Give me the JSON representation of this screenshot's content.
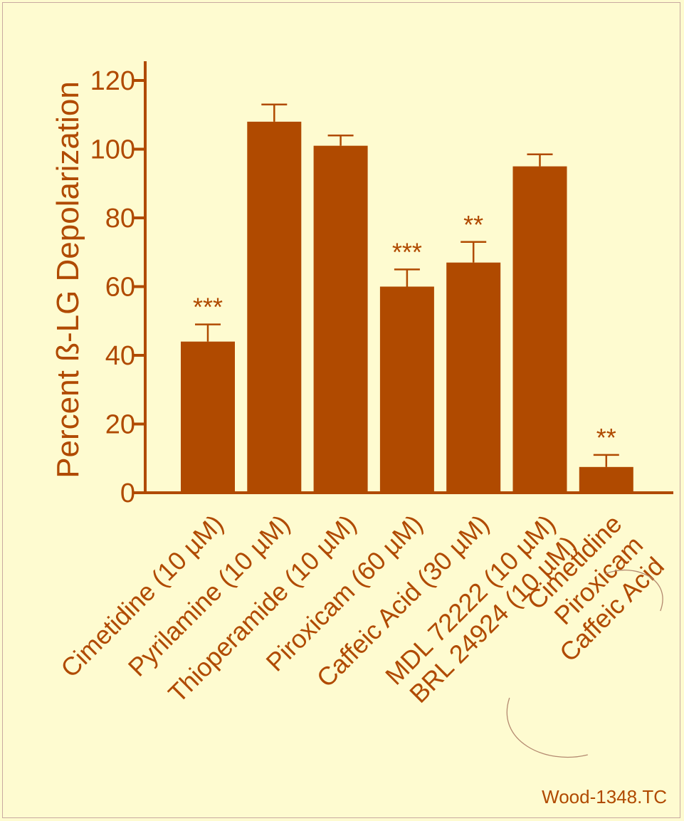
{
  "chart_data": {
    "type": "bar",
    "ylabel": "Percent ß-LG Depolarization",
    "ylim": [
      0,
      120
    ],
    "yticks": [
      0,
      20,
      40,
      60,
      80,
      100,
      120
    ],
    "categories": [
      [
        "Cimetidine (10 µM)"
      ],
      [
        "Pyrilamine (10 µM)"
      ],
      [
        "Thioperamide (10 µM)"
      ],
      [
        "Piroxicam (60 µM)"
      ],
      [
        "Caffeic Acid (30 µM)"
      ],
      [
        "MDL 72222 (10 µM)",
        "BRL 24924 (10 µM)"
      ],
      [
        "Cimetidine",
        "Piroxicam",
        "Caffeic Acid"
      ]
    ],
    "values": [
      44,
      108,
      101,
      60,
      67,
      95,
      7.5
    ],
    "errors": [
      5,
      5,
      3,
      5,
      6,
      3.5,
      3.5
    ],
    "significance": [
      "***",
      "",
      "",
      "***",
      "**",
      "",
      "**"
    ],
    "colors": {
      "bar": "#b04a00",
      "background": "#fefbd0"
    }
  },
  "footer": {
    "label": "Wood-1348.TC"
  }
}
